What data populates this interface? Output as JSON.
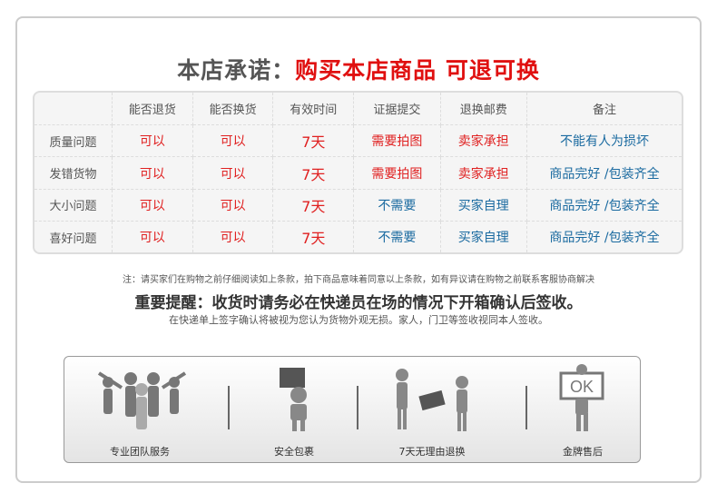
{
  "title": {
    "prefix": "本店承诺：",
    "highlight": "购买本店商品 可退可换"
  },
  "table": {
    "headers": [
      "",
      "能否退货",
      "能否换货",
      "有效时间",
      "证据提交",
      "退换邮费",
      "备注"
    ],
    "rows": [
      {
        "label": "质量问题",
        "return": "可以",
        "exchange": "可以",
        "period": "7天",
        "evidence": "需要拍图",
        "shipping": "卖家承担",
        "remark": "不能有人为损坏"
      },
      {
        "label": "发错货物",
        "return": "可以",
        "exchange": "可以",
        "period": "7天",
        "evidence": "需要拍图",
        "shipping": "卖家承担",
        "remark": "商品完好  /包装齐全"
      },
      {
        "label": "大小问题",
        "return": "可以",
        "exchange": "可以",
        "period": "7天",
        "evidence": "不需要",
        "shipping": "买家自理",
        "remark": "商品完好  /包装齐全"
      },
      {
        "label": "喜好问题",
        "return": "可以",
        "exchange": "可以",
        "period": "7天",
        "evidence": "不需要",
        "shipping": "买家自理",
        "remark": "商品完好  /包装齐全"
      }
    ]
  },
  "note": "注：请买家们在购物之前仔细阅读如上条款，拍下商品意味着同意以上条款，如有异议请在购物之前联系客服协商解决",
  "warning": "重要提醒：收货时请务必在快递员在场的情况下开箱确认后签收。",
  "warning_sub": "在快递单上签字确认将被视为您认为货物外观无损。家人，门卫等签收视同本人签收。",
  "services": [
    {
      "label": "专业团队服务",
      "icon": "team-icon"
    },
    {
      "label": "安全包裹",
      "icon": "package-icon"
    },
    {
      "label": "7天无理由退换",
      "icon": "exchange-icon"
    },
    {
      "label": "金牌售后",
      "icon": "ok-sign-icon"
    }
  ],
  "colors": {
    "red": "#e02020",
    "blue": "#1a6aa0"
  }
}
